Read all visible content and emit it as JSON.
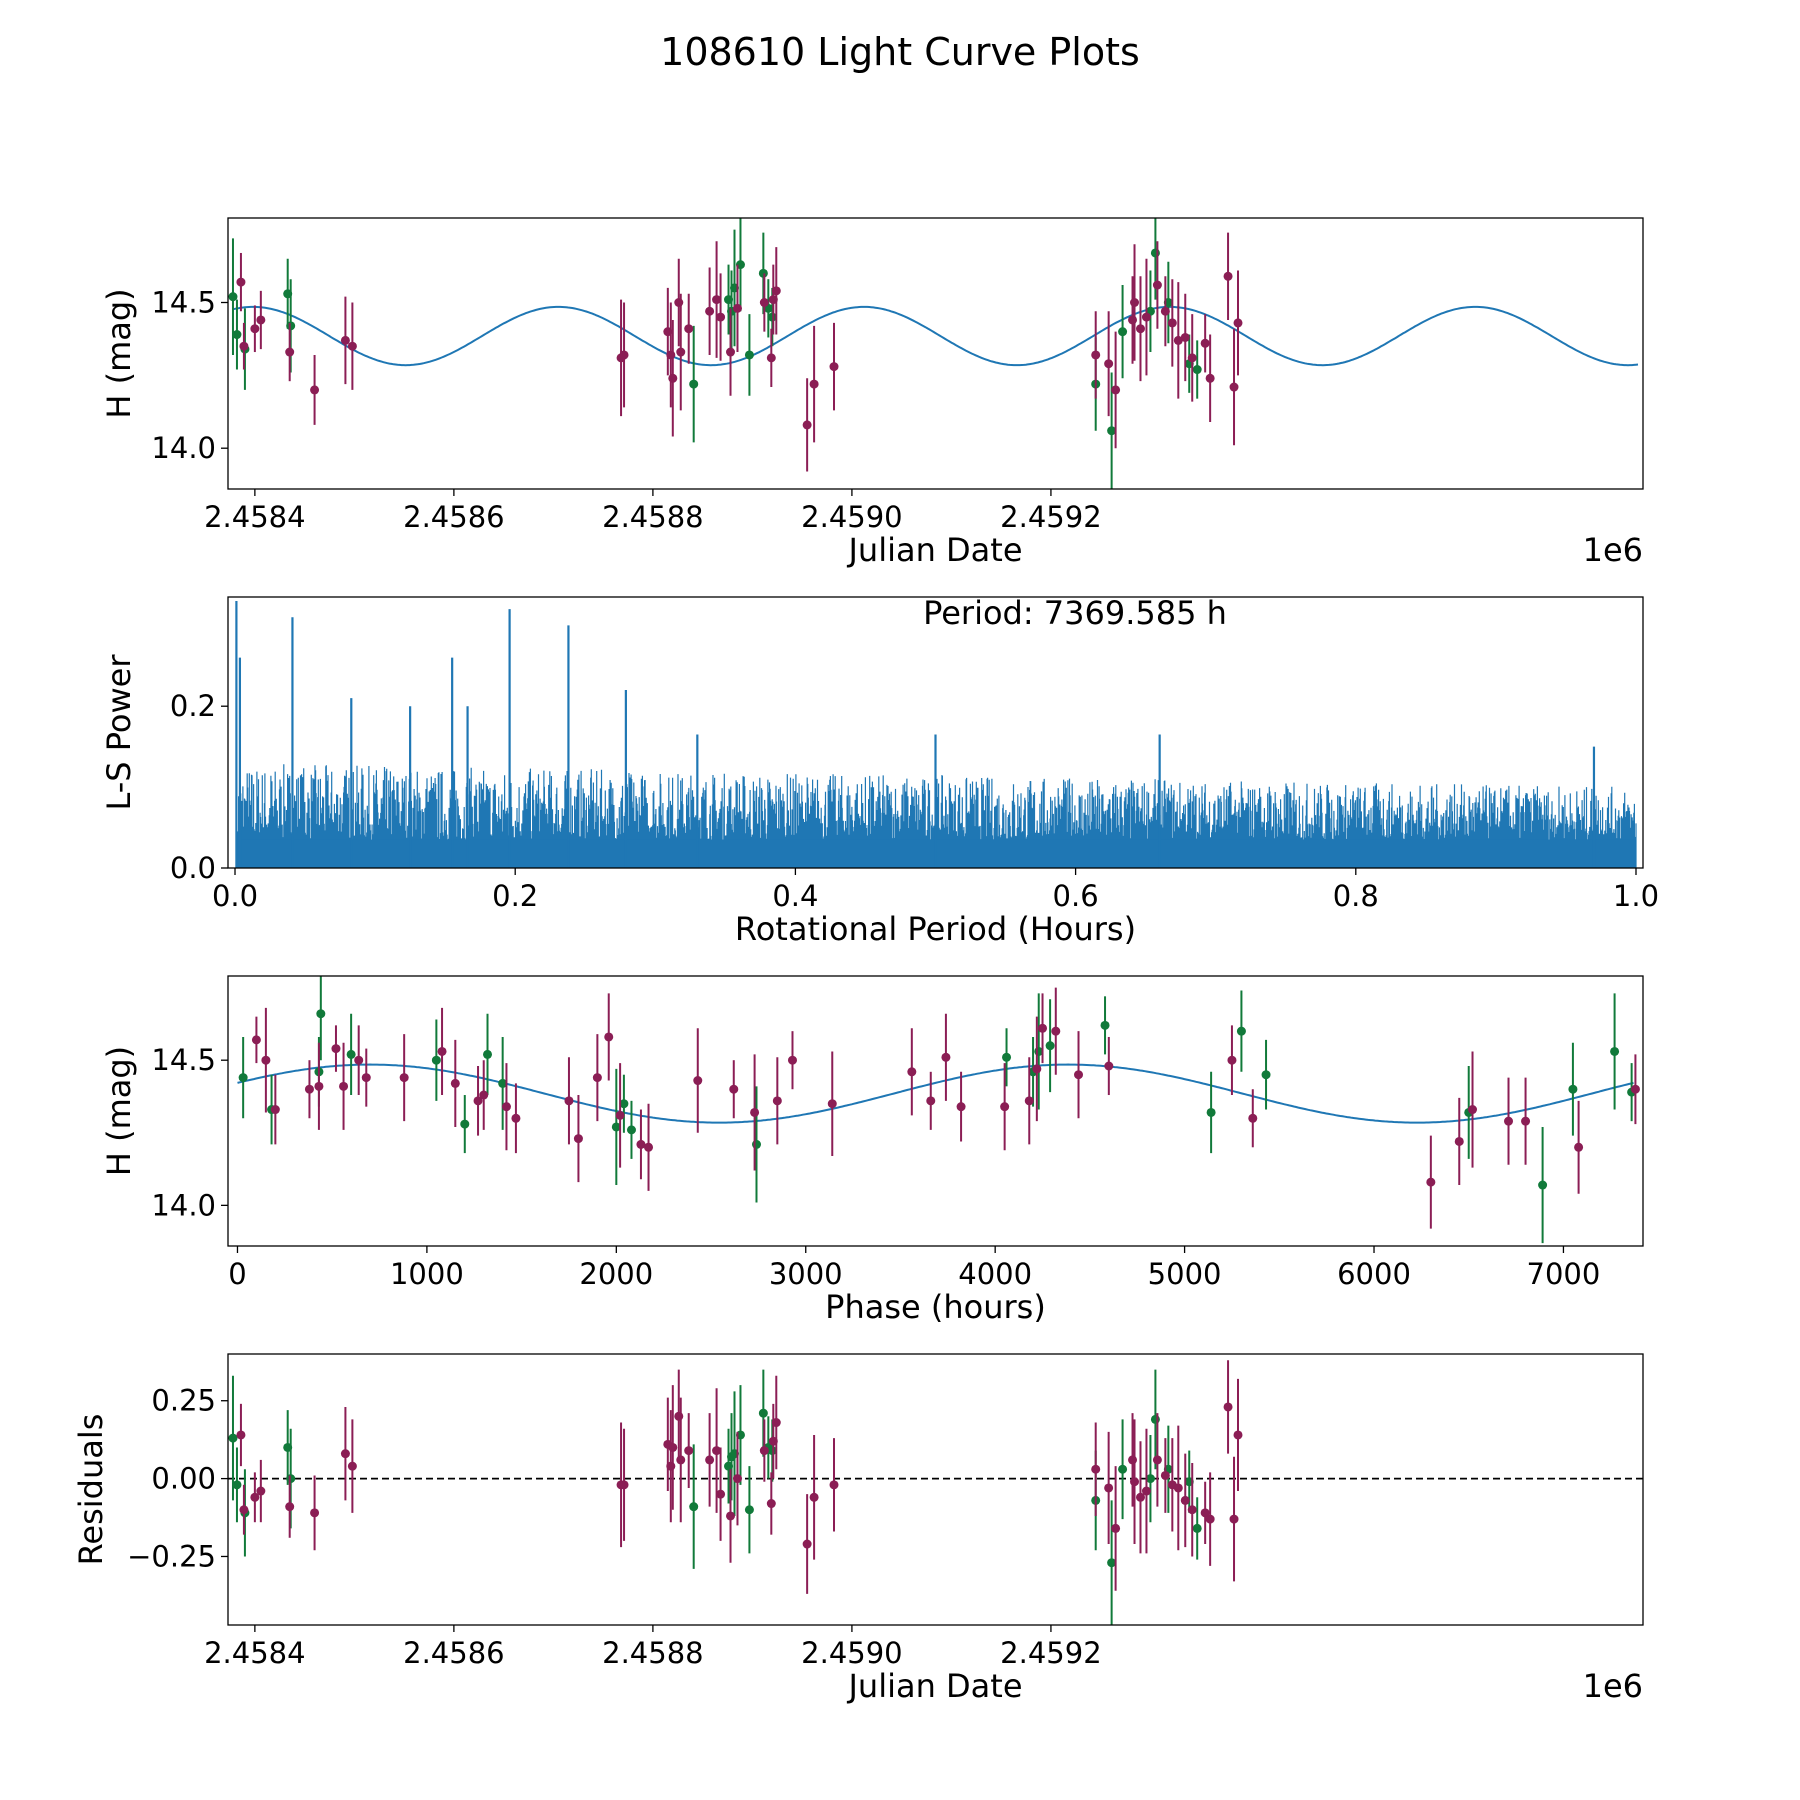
{
  "title": "108610 Light Curve Plots",
  "colors": {
    "curve": "#1f77b4",
    "green_obs": "#117a3a",
    "red_obs": "#8b1e55",
    "axis": "#000000",
    "zero_line": "#000000"
  },
  "chart_data": [
    {
      "id": "lightcurve",
      "type": "scatter",
      "xlabel": "Julian Date",
      "ylabel": "H (mag)",
      "offset_label": "1e6",
      "xlim": [
        2458373,
        2459795
      ],
      "ylim": [
        13.86,
        14.79
      ],
      "xticks": [
        2458400,
        2458600,
        2458800,
        2459000,
        2459200
      ],
      "xtick_labels": [
        "2.4584",
        "2.4586",
        "2.4588",
        "2.4590",
        "2.4592"
      ],
      "yticks": [
        14.0,
        14.5
      ],
      "ytick_labels": [
        "14.0",
        "14.5"
      ],
      "model": {
        "mean": 14.385,
        "amplitude": 0.1,
        "period_days": 307.07,
        "peak_jd": 2458398
      },
      "series": [
        {
          "name": "green",
          "color_key": "green_obs",
          "x": [
            2458378,
            2458382,
            2458390,
            2458433,
            2458436,
            2458841,
            2458876,
            2458879,
            2458882,
            2458888,
            2458897,
            2458911,
            2458916,
            2458920,
            2459245,
            2459261,
            2459272,
            2459300,
            2459305,
            2459318,
            2459339,
            2459347
          ],
          "y": [
            14.52,
            14.39,
            14.34,
            14.53,
            14.42,
            14.22,
            14.51,
            14.47,
            14.55,
            14.63,
            14.32,
            14.6,
            14.48,
            14.45,
            14.22,
            14.06,
            14.4,
            14.47,
            14.67,
            14.5,
            14.29,
            14.27
          ],
          "err": [
            0.2,
            0.12,
            0.14,
            0.12,
            0.16,
            0.2,
            0.12,
            0.14,
            0.2,
            0.16,
            0.14,
            0.14,
            0.1,
            0.1,
            0.16,
            0.2,
            0.16,
            0.14,
            0.16,
            0.14,
            0.1,
            0.1
          ]
        },
        {
          "name": "red",
          "color_key": "red_obs",
          "x": [
            2458386,
            2458389,
            2458400,
            2458406,
            2458435,
            2458460,
            2458491,
            2458498,
            2458768,
            2458771,
            2458815,
            2458818,
            2458820,
            2458826,
            2458828,
            2458836,
            2458857,
            2458864,
            2458868,
            2458878,
            2458885,
            2458912,
            2458919,
            2458921,
            2458924,
            2458955,
            2458962,
            2458982,
            2459245,
            2459258,
            2459265,
            2459282,
            2459284,
            2459290,
            2459296,
            2459307,
            2459315,
            2459322,
            2459328,
            2459335,
            2459342,
            2459355,
            2459360,
            2459378,
            2459384,
            2459388
          ],
          "y": [
            14.57,
            14.35,
            14.41,
            14.44,
            14.33,
            14.2,
            14.37,
            14.35,
            14.31,
            14.32,
            14.4,
            14.32,
            14.24,
            14.5,
            14.33,
            14.41,
            14.47,
            14.51,
            14.45,
            14.33,
            14.48,
            14.5,
            14.31,
            14.51,
            14.54,
            14.08,
            14.22,
            14.28,
            14.32,
            14.29,
            14.2,
            14.44,
            14.5,
            14.41,
            14.45,
            14.56,
            14.47,
            14.43,
            14.37,
            14.38,
            14.31,
            14.36,
            14.24,
            14.59,
            14.21,
            14.43
          ],
          "err": [
            0.1,
            0.08,
            0.08,
            0.1,
            0.1,
            0.12,
            0.15,
            0.15,
            0.2,
            0.18,
            0.15,
            0.18,
            0.2,
            0.15,
            0.2,
            0.12,
            0.15,
            0.2,
            0.15,
            0.15,
            0.15,
            0.1,
            0.1,
            0.12,
            0.15,
            0.16,
            0.2,
            0.15,
            0.15,
            0.18,
            0.2,
            0.15,
            0.2,
            0.18,
            0.2,
            0.15,
            0.12,
            0.15,
            0.2,
            0.15,
            0.15,
            0.1,
            0.15,
            0.15,
            0.2,
            0.18
          ]
        }
      ]
    },
    {
      "id": "periodogram",
      "type": "line",
      "xlabel": "Rotational Period (Hours)",
      "ylabel": "L-S Power",
      "annotation": "Period: 7369.585 h",
      "xlim": [
        -0.005,
        1.005
      ],
      "ylim": [
        0.0,
        0.335
      ],
      "xticks": [
        0.0,
        0.2,
        0.4,
        0.6,
        0.8,
        1.0
      ],
      "xtick_labels": [
        "0.0",
        "0.2",
        "0.4",
        "0.6",
        "0.8",
        "1.0"
      ],
      "yticks": [
        0.0,
        0.2
      ],
      "ytick_labels": [
        "0.0",
        "0.2"
      ],
      "noise": {
        "start_x": 0.001,
        "end_x": 1.0,
        "samples": 2600,
        "base_level": 0.035,
        "upper_start": 0.13,
        "upper_end": 0.1
      },
      "peaks": [
        {
          "x": 0.001,
          "y": 0.33
        },
        {
          "x": 0.0035,
          "y": 0.26
        },
        {
          "x": 0.041,
          "y": 0.31
        },
        {
          "x": 0.083,
          "y": 0.21
        },
        {
          "x": 0.125,
          "y": 0.2
        },
        {
          "x": 0.155,
          "y": 0.26
        },
        {
          "x": 0.166,
          "y": 0.2
        },
        {
          "x": 0.196,
          "y": 0.32
        },
        {
          "x": 0.238,
          "y": 0.3
        },
        {
          "x": 0.279,
          "y": 0.22
        },
        {
          "x": 0.33,
          "y": 0.165
        },
        {
          "x": 0.5,
          "y": 0.165
        },
        {
          "x": 0.66,
          "y": 0.165
        },
        {
          "x": 0.97,
          "y": 0.15
        }
      ]
    },
    {
      "id": "phased",
      "type": "scatter",
      "xlabel": "Phase (hours)",
      "ylabel": "H (mag)",
      "xlim": [
        -50,
        7420
      ],
      "ylim": [
        13.86,
        14.79
      ],
      "xticks": [
        0,
        1000,
        2000,
        3000,
        4000,
        5000,
        6000,
        7000
      ],
      "xtick_labels": [
        "0",
        "1000",
        "2000",
        "3000",
        "4000",
        "5000",
        "6000",
        "7000"
      ],
      "yticks": [
        14.0,
        14.5
      ],
      "ytick_labels": [
        "14.0",
        "14.5"
      ],
      "model": {
        "mean": 14.385,
        "amplitude": 0.1,
        "period_hours": 7369.585,
        "peak_phase": 700,
        "second_peak": 4400
      },
      "series": [
        {
          "name": "green",
          "color_key": "green_obs",
          "x": [
            30,
            180,
            430,
            440,
            600,
            1050,
            1200,
            1320,
            1400,
            2000,
            2040,
            2080,
            2740,
            4060,
            4200,
            4230,
            4290,
            4580,
            5140,
            5300,
            5430,
            6500,
            6890,
            7050,
            7270,
            7360
          ],
          "y": [
            14.44,
            14.33,
            14.46,
            14.66,
            14.52,
            14.5,
            14.28,
            14.52,
            14.42,
            14.27,
            14.35,
            14.26,
            14.21,
            14.51,
            14.46,
            14.53,
            14.55,
            14.62,
            14.32,
            14.6,
            14.45,
            14.32,
            14.07,
            14.4,
            14.53,
            14.39
          ],
          "err": [
            0.14,
            0.12,
            0.12,
            0.16,
            0.14,
            0.14,
            0.1,
            0.14,
            0.16,
            0.2,
            0.1,
            0.1,
            0.2,
            0.1,
            0.12,
            0.2,
            0.16,
            0.1,
            0.14,
            0.14,
            0.12,
            0.16,
            0.2,
            0.16,
            0.2,
            0.1
          ]
        },
        {
          "name": "red",
          "color_key": "red_obs",
          "x": [
            100,
            150,
            200,
            380,
            430,
            520,
            560,
            640,
            680,
            880,
            1080,
            1150,
            1270,
            1300,
            1420,
            1470,
            1750,
            1800,
            1900,
            1960,
            2020,
            2130,
            2170,
            2430,
            2620,
            2730,
            2850,
            2930,
            3140,
            3560,
            3660,
            3740,
            3820,
            4050,
            4180,
            4220,
            4250,
            4320,
            4440,
            4600,
            5250,
            5360,
            6300,
            6450,
            6520,
            6710,
            6800,
            7080,
            7380
          ],
          "y": [
            14.57,
            14.5,
            14.33,
            14.4,
            14.41,
            14.54,
            14.41,
            14.5,
            14.44,
            14.44,
            14.53,
            14.42,
            14.36,
            14.38,
            14.34,
            14.3,
            14.36,
            14.23,
            14.44,
            14.58,
            14.31,
            14.21,
            14.2,
            14.43,
            14.4,
            14.32,
            14.36,
            14.5,
            14.35,
            14.46,
            14.36,
            14.51,
            14.34,
            14.34,
            14.36,
            14.47,
            14.61,
            14.6,
            14.45,
            14.48,
            14.5,
            14.3,
            14.08,
            14.22,
            14.33,
            14.29,
            14.29,
            14.2,
            14.4
          ],
          "err": [
            0.08,
            0.18,
            0.12,
            0.1,
            0.15,
            0.08,
            0.15,
            0.12,
            0.1,
            0.15,
            0.15,
            0.15,
            0.12,
            0.12,
            0.15,
            0.12,
            0.15,
            0.15,
            0.15,
            0.15,
            0.18,
            0.12,
            0.15,
            0.18,
            0.1,
            0.2,
            0.15,
            0.1,
            0.18,
            0.15,
            0.1,
            0.15,
            0.12,
            0.15,
            0.15,
            0.18,
            0.12,
            0.15,
            0.15,
            0.1,
            0.12,
            0.1,
            0.16,
            0.15,
            0.2,
            0.15,
            0.15,
            0.16,
            0.12
          ]
        }
      ]
    },
    {
      "id": "residuals",
      "type": "scatter",
      "xlabel": "Julian Date",
      "ylabel": "Residuals",
      "offset_label": "1e6",
      "xlim": [
        2458373,
        2459795
      ],
      "ylim": [
        -0.47,
        0.4
      ],
      "xticks": [
        2458400,
        2458600,
        2458800,
        2459000,
        2459200
      ],
      "xtick_labels": [
        "2.4584",
        "2.4586",
        "2.4588",
        "2.4590",
        "2.4592"
      ],
      "yticks": [
        0.25,
        0.0,
        -0.25
      ],
      "ytick_labels": [
        "0.25",
        "0.00",
        "−0.25"
      ],
      "zero_line": 0.0,
      "series": [
        {
          "name": "green",
          "color_key": "green_obs",
          "x": [
            2458378,
            2458382,
            2458390,
            2458433,
            2458436,
            2458841,
            2458876,
            2458879,
            2458882,
            2458888,
            2458897,
            2458911,
            2458916,
            2458920,
            2459245,
            2459261,
            2459272,
            2459300,
            2459305,
            2459318,
            2459339,
            2459347
          ],
          "y": [
            0.13,
            -0.02,
            -0.11,
            0.1,
            0.0,
            -0.09,
            0.04,
            0.07,
            0.08,
            0.14,
            -0.1,
            0.21,
            0.1,
            0.09,
            -0.07,
            -0.27,
            0.03,
            0.0,
            0.19,
            0.03,
            -0.01,
            -0.16
          ],
          "err": [
            0.2,
            0.12,
            0.14,
            0.12,
            0.16,
            0.2,
            0.12,
            0.14,
            0.2,
            0.16,
            0.14,
            0.14,
            0.1,
            0.1,
            0.16,
            0.2,
            0.16,
            0.14,
            0.16,
            0.14,
            0.1,
            0.1
          ]
        },
        {
          "name": "red",
          "color_key": "red_obs",
          "x": [
            2458386,
            2458389,
            2458400,
            2458406,
            2458435,
            2458460,
            2458491,
            2458498,
            2458768,
            2458771,
            2458815,
            2458818,
            2458820,
            2458826,
            2458828,
            2458836,
            2458857,
            2458864,
            2458868,
            2458878,
            2458885,
            2458912,
            2458919,
            2458921,
            2458924,
            2458955,
            2458962,
            2458982,
            2459245,
            2459258,
            2459265,
            2459282,
            2459284,
            2459290,
            2459296,
            2459307,
            2459315,
            2459322,
            2459328,
            2459335,
            2459342,
            2459355,
            2459360,
            2459378,
            2459384,
            2459388
          ],
          "y": [
            0.14,
            -0.1,
            -0.06,
            -0.04,
            -0.09,
            -0.11,
            0.08,
            0.04,
            -0.02,
            -0.02,
            0.11,
            0.04,
            0.1,
            0.2,
            0.06,
            0.09,
            0.06,
            0.09,
            -0.05,
            -0.12,
            0.0,
            0.09,
            -0.08,
            0.12,
            0.18,
            -0.21,
            -0.06,
            -0.02,
            0.03,
            -0.03,
            -0.16,
            0.06,
            -0.01,
            -0.06,
            -0.04,
            0.06,
            0.01,
            -0.02,
            -0.03,
            -0.07,
            -0.1,
            -0.11,
            -0.13,
            0.23,
            -0.13,
            0.14
          ],
          "err": [
            0.1,
            0.08,
            0.08,
            0.1,
            0.1,
            0.12,
            0.15,
            0.15,
            0.2,
            0.18,
            0.15,
            0.18,
            0.2,
            0.15,
            0.2,
            0.12,
            0.15,
            0.2,
            0.15,
            0.15,
            0.15,
            0.1,
            0.1,
            0.12,
            0.15,
            0.16,
            0.2,
            0.15,
            0.15,
            0.18,
            0.2,
            0.15,
            0.2,
            0.18,
            0.2,
            0.15,
            0.12,
            0.15,
            0.2,
            0.15,
            0.15,
            0.1,
            0.15,
            0.15,
            0.2,
            0.18
          ]
        }
      ]
    }
  ]
}
